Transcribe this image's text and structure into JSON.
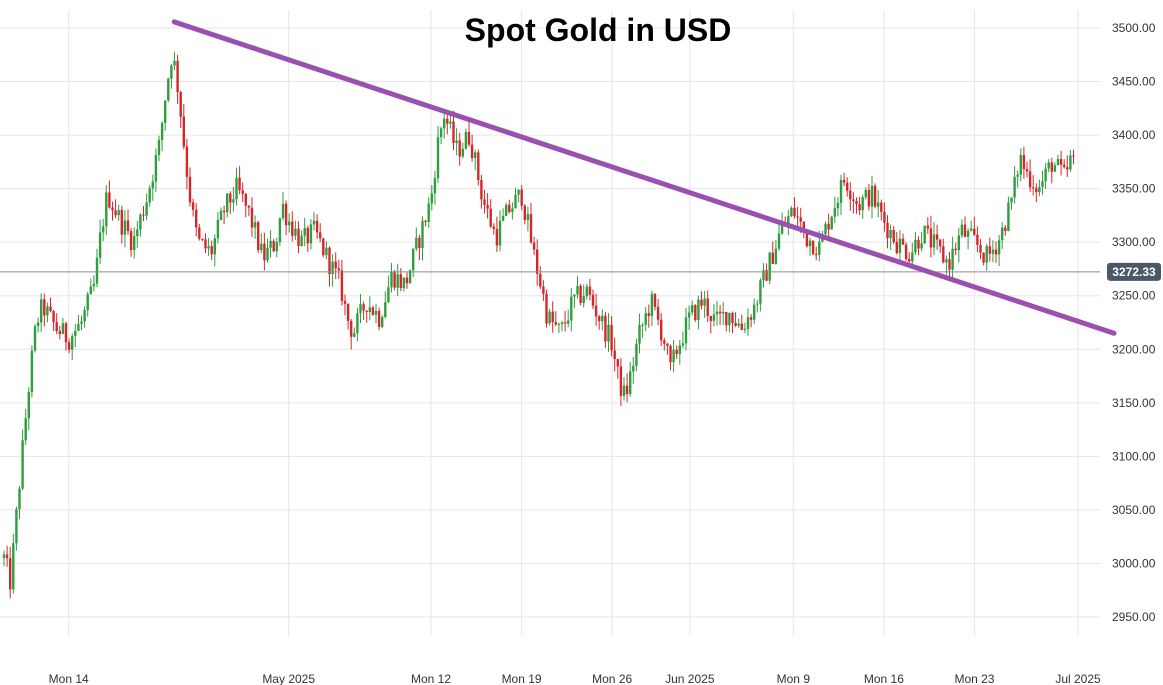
{
  "chart_data": {
    "type": "candlestick",
    "title": "Spot Gold in USD",
    "xlabel": "",
    "ylabel": "",
    "ylim": [
      2915,
      3525
    ],
    "grid": true,
    "legend": "none",
    "x_range": [
      "2025-04-09",
      "2025-07-01"
    ],
    "y_ticks": [
      2950,
      3000,
      3050,
      3100,
      3150,
      3200,
      3250,
      3300,
      3350,
      3400,
      3450,
      3500
    ],
    "y_tick_labels": [
      "2950.00",
      "3000.00",
      "3050.00",
      "3100.00",
      "3150.00",
      "3200.00",
      "3250.00",
      "3300.00",
      "3350.00",
      "3400.00",
      "3450.00",
      "3500.00"
    ],
    "x_ticks": [
      {
        "date": "2025-04-14",
        "label": "Mon 14"
      },
      {
        "date": "2025-05-01",
        "label": "May 2025"
      },
      {
        "date": "2025-05-12",
        "label": "Mon 12"
      },
      {
        "date": "2025-05-19",
        "label": "Mon 19"
      },
      {
        "date": "2025-05-26",
        "label": "Mon 26"
      },
      {
        "date": "2025-06-01",
        "label": "Jun 2025"
      },
      {
        "date": "2025-06-09",
        "label": "Mon 9"
      },
      {
        "date": "2025-06-16",
        "label": "Mon 16"
      },
      {
        "date": "2025-06-23",
        "label": "Mon 23"
      },
      {
        "date": "2025-07-01",
        "label": "Jul 2025"
      }
    ],
    "last_price": 3272.33,
    "last_price_label": "3272.33",
    "trendline": {
      "start": {
        "date": "2025-04-22",
        "price": 3502
      },
      "end": {
        "date": "2025-07-01",
        "price": 3215
      }
    },
    "colors": {
      "up": "#2e9e3e",
      "down": "#d6262b",
      "trendline": "#9b4fae",
      "grid": "#e6e6e6",
      "price_line": "#8c8c8c",
      "price_label_bg": "#4a5868"
    },
    "path_points": [
      {
        "date": "2025-04-09",
        "price": 3005
      },
      {
        "date": "2025-04-09T12:00",
        "price": 2982
      },
      {
        "date": "2025-04-10",
        "price": 3050
      },
      {
        "date": "2025-04-10T12:00",
        "price": 3115
      },
      {
        "date": "2025-04-11",
        "price": 3175
      },
      {
        "date": "2025-04-11T12:00",
        "price": 3225
      },
      {
        "date": "2025-04-12",
        "price": 3240
      },
      {
        "date": "2025-04-13",
        "price": 3220
      },
      {
        "date": "2025-04-14",
        "price": 3210
      },
      {
        "date": "2025-04-15",
        "price": 3225
      },
      {
        "date": "2025-04-16",
        "price": 3260
      },
      {
        "date": "2025-04-16T12:00",
        "price": 3310
      },
      {
        "date": "2025-04-17",
        "price": 3345
      },
      {
        "date": "2025-04-18",
        "price": 3320
      },
      {
        "date": "2025-04-19",
        "price": 3300
      },
      {
        "date": "2025-04-20",
        "price": 3340
      },
      {
        "date": "2025-04-21",
        "price": 3390
      },
      {
        "date": "2025-04-21T12:00",
        "price": 3440
      },
      {
        "date": "2025-04-22",
        "price": 3478
      },
      {
        "date": "2025-04-22T12:00",
        "price": 3440
      },
      {
        "date": "2025-04-23",
        "price": 3380
      },
      {
        "date": "2025-04-23T12:00",
        "price": 3330
      },
      {
        "date": "2025-04-24",
        "price": 3300
      },
      {
        "date": "2025-04-25",
        "price": 3290
      },
      {
        "date": "2025-04-26",
        "price": 3330
      },
      {
        "date": "2025-04-27",
        "price": 3350
      },
      {
        "date": "2025-04-28",
        "price": 3325
      },
      {
        "date": "2025-04-29",
        "price": 3285
      },
      {
        "date": "2025-04-30",
        "price": 3300
      },
      {
        "date": "2025-04-30T12:00",
        "price": 3335
      },
      {
        "date": "2025-05-01",
        "price": 3320
      },
      {
        "date": "2025-05-02",
        "price": 3300
      },
      {
        "date": "2025-05-03",
        "price": 3310
      },
      {
        "date": "2025-05-04",
        "price": 3285
      },
      {
        "date": "2025-05-05",
        "price": 3260
      },
      {
        "date": "2025-05-05T12:00",
        "price": 3230
      },
      {
        "date": "2025-05-06",
        "price": 3215
      },
      {
        "date": "2025-05-07",
        "price": 3245
      },
      {
        "date": "2025-05-08",
        "price": 3230
      },
      {
        "date": "2025-05-09",
        "price": 3270
      },
      {
        "date": "2025-05-10",
        "price": 3260
      },
      {
        "date": "2025-05-11",
        "price": 3300
      },
      {
        "date": "2025-05-12",
        "price": 3340
      },
      {
        "date": "2025-05-12T12:00",
        "price": 3390
      },
      {
        "date": "2025-05-13",
        "price": 3420
      },
      {
        "date": "2025-05-14",
        "price": 3385
      },
      {
        "date": "2025-05-15",
        "price": 3400
      },
      {
        "date": "2025-05-15T12:00",
        "price": 3370
      },
      {
        "date": "2025-05-16",
        "price": 3340
      },
      {
        "date": "2025-05-17",
        "price": 3305
      },
      {
        "date": "2025-05-18",
        "price": 3330
      },
      {
        "date": "2025-05-19",
        "price": 3345
      },
      {
        "date": "2025-05-20",
        "price": 3285
      },
      {
        "date": "2025-05-20T12:00",
        "price": 3260
      },
      {
        "date": "2025-05-21",
        "price": 3230
      },
      {
        "date": "2025-05-22",
        "price": 3215
      },
      {
        "date": "2025-05-23",
        "price": 3245
      },
      {
        "date": "2025-05-24",
        "price": 3255
      },
      {
        "date": "2025-05-25",
        "price": 3230
      },
      {
        "date": "2025-05-26",
        "price": 3205
      },
      {
        "date": "2025-05-26T12:00",
        "price": 3170
      },
      {
        "date": "2025-05-27",
        "price": 3155
      },
      {
        "date": "2025-05-27T12:00",
        "price": 3180
      },
      {
        "date": "2025-05-28",
        "price": 3210
      },
      {
        "date": "2025-05-29",
        "price": 3245
      },
      {
        "date": "2025-05-30",
        "price": 3210
      },
      {
        "date": "2025-05-30T12:00",
        "price": 3180
      },
      {
        "date": "2025-05-31",
        "price": 3200
      },
      {
        "date": "2025-06-01",
        "price": 3230
      },
      {
        "date": "2025-06-02",
        "price": 3245
      },
      {
        "date": "2025-06-03",
        "price": 3225
      },
      {
        "date": "2025-06-04",
        "price": 3235
      },
      {
        "date": "2025-06-05",
        "price": 3220
      },
      {
        "date": "2025-06-06",
        "price": 3240
      },
      {
        "date": "2025-06-07",
        "price": 3275
      },
      {
        "date": "2025-06-08",
        "price": 3310
      },
      {
        "date": "2025-06-09",
        "price": 3330
      },
      {
        "date": "2025-06-10",
        "price": 3305
      },
      {
        "date": "2025-06-11",
        "price": 3295
      },
      {
        "date": "2025-06-12",
        "price": 3330
      },
      {
        "date": "2025-06-13",
        "price": 3360
      },
      {
        "date": "2025-06-14",
        "price": 3335
      },
      {
        "date": "2025-06-15",
        "price": 3345
      },
      {
        "date": "2025-06-16",
        "price": 3320
      },
      {
        "date": "2025-06-17",
        "price": 3300
      },
      {
        "date": "2025-06-18",
        "price": 3290
      },
      {
        "date": "2025-06-19",
        "price": 3310
      },
      {
        "date": "2025-06-20",
        "price": 3295
      },
      {
        "date": "2025-06-21",
        "price": 3280
      },
      {
        "date": "2025-06-22",
        "price": 3310
      },
      {
        "date": "2025-06-23",
        "price": 3300
      },
      {
        "date": "2025-06-24",
        "price": 3285
      },
      {
        "date": "2025-06-25",
        "price": 3305
      },
      {
        "date": "2025-06-26",
        "price": 3345
      },
      {
        "date": "2025-06-26T12:00",
        "price": 3380
      },
      {
        "date": "2025-06-27",
        "price": 3365
      },
      {
        "date": "2025-06-28",
        "price": 3350
      },
      {
        "date": "2025-06-29",
        "price": 3375
      },
      {
        "date": "2025-06-30",
        "price": 3360
      },
      {
        "date": "2025-06-30T12:00",
        "price": 3380
      },
      {
        "date": "2025-07-01",
        "price": 3355
      }
    ]
  }
}
